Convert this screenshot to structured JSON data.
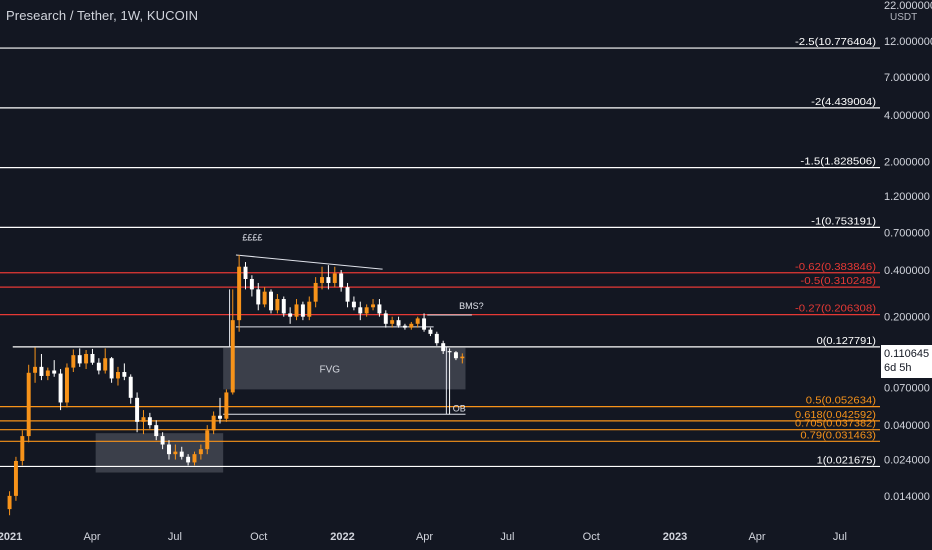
{
  "header": {
    "title": "Presearch / Tether, 1W, KUCOIN",
    "currency": "USDT"
  },
  "price_tag": {
    "value": "0.110645",
    "countdown": "6d 5h"
  },
  "colors": {
    "background": "#131722",
    "bull": "#f7931a",
    "bear": "#ffffff",
    "fib_white": "#ffffff",
    "fib_red": "#e53935",
    "fib_orange": "#f7931a",
    "zone": "#5d606b",
    "axis_text": "#d1d4dc"
  },
  "chart_data": {
    "type": "candlestick",
    "title": "Presearch / Tether, 1W, KUCOIN",
    "y_scale": "log",
    "y_unit": "USDT",
    "y_range": [
      0.0095,
      22
    ],
    "y_top_label": "22.000000",
    "y_ticks": [
      {
        "value": 12.0,
        "label": "12.000000"
      },
      {
        "value": 7.0,
        "label": "7.000000"
      },
      {
        "value": 4.0,
        "label": "4.000000"
      },
      {
        "value": 2.0,
        "label": "2.000000"
      },
      {
        "value": 1.2,
        "label": "1.200000"
      },
      {
        "value": 0.7,
        "label": "0.700000"
      },
      {
        "value": 0.4,
        "label": "0.400000"
      },
      {
        "value": 0.2,
        "label": "0.200000"
      },
      {
        "value": 0.07,
        "label": "0.070000"
      },
      {
        "value": 0.04,
        "label": "0.040000"
      },
      {
        "value": 0.024,
        "label": "0.024000"
      },
      {
        "value": 0.014,
        "label": "0.014000"
      }
    ],
    "x_range": [
      "2020-12-21",
      "2023-08-14"
    ],
    "x_ticks": [
      {
        "date": "2021-01-01",
        "label": "2021",
        "bold": true
      },
      {
        "date": "2021-04-01",
        "label": "Apr",
        "bold": false
      },
      {
        "date": "2021-07-01",
        "label": "Jul",
        "bold": false
      },
      {
        "date": "2021-10-01",
        "label": "Oct",
        "bold": false
      },
      {
        "date": "2022-01-01",
        "label": "2022",
        "bold": true
      },
      {
        "date": "2022-04-01",
        "label": "Apr",
        "bold": false
      },
      {
        "date": "2022-07-01",
        "label": "Jul",
        "bold": false
      },
      {
        "date": "2022-10-01",
        "label": "Oct",
        "bold": false
      },
      {
        "date": "2023-01-01",
        "label": "2023",
        "bold": true
      },
      {
        "date": "2023-04-01",
        "label": "Apr",
        "bold": false
      },
      {
        "date": "2023-07-01",
        "label": "Jul",
        "bold": false
      }
    ],
    "fib_levels": [
      {
        "label": "-2.5(10.776404)",
        "value": 10.776404,
        "color": "white",
        "start": "2020-12-21"
      },
      {
        "label": "-2(4.439004)",
        "value": 4.439004,
        "color": "white",
        "start": "2020-12-21"
      },
      {
        "label": "-1.5(1.828506)",
        "value": 1.828506,
        "color": "white",
        "start": "2020-12-21"
      },
      {
        "label": "-1(0.753191)",
        "value": 0.753191,
        "color": "white",
        "start": "2020-12-21"
      },
      {
        "label": "-0.62(0.383846)",
        "value": 0.383846,
        "color": "red",
        "start": "2020-12-21"
      },
      {
        "label": "-0.5(0.310248)",
        "value": 0.310248,
        "color": "red",
        "start": "2020-12-21"
      },
      {
        "label": "-0.27(0.206308)",
        "value": 0.206308,
        "color": "red",
        "start": "2020-12-21"
      },
      {
        "label": "0(0.127791)",
        "value": 0.127791,
        "color": "white",
        "start": "2021-01-04"
      },
      {
        "label": "0.5(0.052634)",
        "value": 0.052634,
        "color": "orange",
        "start": "2020-12-21"
      },
      {
        "label": "0.618(0.042592)",
        "value": 0.042592,
        "color": "orange",
        "start": "2020-12-21"
      },
      {
        "label": "0.705(0.037382)",
        "value": 0.037382,
        "color": "orange",
        "start": "2020-12-21"
      },
      {
        "label": "0.79(0.031463)",
        "value": 0.031463,
        "color": "orange",
        "start": "2020-12-21"
      },
      {
        "label": "1(0.021675)",
        "value": 0.021675,
        "color": "white",
        "start": "2020-12-21"
      }
    ],
    "zones": [
      {
        "label": "FVG",
        "start": "2021-08-23",
        "end": "2022-05-16",
        "high": 0.126,
        "low": 0.068
      },
      {
        "label": "",
        "start": "2021-04-05",
        "end": "2021-08-23",
        "high": 0.0355,
        "low": 0.0198
      }
    ],
    "annotations": [
      {
        "text": "££££",
        "date": "2021-09-13",
        "value": 0.62
      },
      {
        "text": "BMS?",
        "date": "2022-05-09",
        "value": 0.225
      },
      {
        "text": "OB",
        "date": "2022-05-02",
        "value": 0.049
      }
    ],
    "drawn_lines": [
      {
        "from": {
          "date": "2021-09-06",
          "value": 0.5
        },
        "to": {
          "date": "2022-02-14",
          "value": 0.405
        }
      },
      {
        "from": {
          "date": "2021-09-06",
          "value": 0.172
        },
        "to": {
          "date": "2022-04-11",
          "value": 0.172
        }
      },
      {
        "from": {
          "date": "2022-04-04",
          "value": 0.205
        },
        "to": {
          "date": "2022-05-23",
          "value": 0.205
        }
      },
      {
        "from": {
          "date": "2021-08-23",
          "value": 0.047
        },
        "to": {
          "date": "2022-05-16",
          "value": 0.047
        }
      },
      {
        "from": {
          "date": "2021-08-30",
          "value": 0.127
        },
        "to": {
          "date": "2021-08-30",
          "value": 0.3
        }
      },
      {
        "from": {
          "date": "2022-04-25",
          "value": 0.127
        },
        "to": {
          "date": "2022-04-25",
          "value": 0.047
        }
      }
    ],
    "candles": [
      {
        "date": "2020-12-28",
        "open": 0.0115,
        "high": 0.015,
        "low": 0.0105,
        "close": 0.014
      },
      {
        "date": "2021-01-04",
        "open": 0.014,
        "high": 0.025,
        "low": 0.013,
        "close": 0.0235
      },
      {
        "date": "2021-01-11",
        "open": 0.0235,
        "high": 0.037,
        "low": 0.022,
        "close": 0.034
      },
      {
        "date": "2021-01-18",
        "open": 0.034,
        "high": 0.098,
        "low": 0.031,
        "close": 0.087
      },
      {
        "date": "2021-01-25",
        "open": 0.087,
        "high": 0.127,
        "low": 0.075,
        "close": 0.095
      },
      {
        "date": "2021-02-01",
        "open": 0.095,
        "high": 0.115,
        "low": 0.078,
        "close": 0.083
      },
      {
        "date": "2021-02-08",
        "open": 0.083,
        "high": 0.094,
        "low": 0.078,
        "close": 0.09
      },
      {
        "date": "2021-02-15",
        "open": 0.09,
        "high": 0.105,
        "low": 0.082,
        "close": 0.086
      },
      {
        "date": "2021-02-22",
        "open": 0.086,
        "high": 0.092,
        "low": 0.05,
        "close": 0.056
      },
      {
        "date": "2021-03-01",
        "open": 0.056,
        "high": 0.1,
        "low": 0.052,
        "close": 0.094
      },
      {
        "date": "2021-03-08",
        "open": 0.094,
        "high": 0.123,
        "low": 0.088,
        "close": 0.113
      },
      {
        "date": "2021-03-15",
        "open": 0.113,
        "high": 0.125,
        "low": 0.095,
        "close": 0.1
      },
      {
        "date": "2021-03-22",
        "open": 0.1,
        "high": 0.122,
        "low": 0.092,
        "close": 0.115
      },
      {
        "date": "2021-03-29",
        "open": 0.115,
        "high": 0.124,
        "low": 0.098,
        "close": 0.101
      },
      {
        "date": "2021-04-05",
        "open": 0.101,
        "high": 0.108,
        "low": 0.085,
        "close": 0.09
      },
      {
        "date": "2021-04-12",
        "open": 0.09,
        "high": 0.125,
        "low": 0.086,
        "close": 0.108
      },
      {
        "date": "2021-04-19",
        "open": 0.108,
        "high": 0.11,
        "low": 0.075,
        "close": 0.08
      },
      {
        "date": "2021-04-26",
        "open": 0.08,
        "high": 0.095,
        "low": 0.072,
        "close": 0.088
      },
      {
        "date": "2021-05-03",
        "open": 0.088,
        "high": 0.1,
        "low": 0.078,
        "close": 0.082
      },
      {
        "date": "2021-05-10",
        "open": 0.082,
        "high": 0.085,
        "low": 0.055,
        "close": 0.06
      },
      {
        "date": "2021-05-17",
        "open": 0.06,
        "high": 0.065,
        "low": 0.036,
        "close": 0.042
      },
      {
        "date": "2021-05-24",
        "open": 0.042,
        "high": 0.05,
        "low": 0.035,
        "close": 0.045
      },
      {
        "date": "2021-05-31",
        "open": 0.045,
        "high": 0.048,
        "low": 0.038,
        "close": 0.04
      },
      {
        "date": "2021-06-07",
        "open": 0.04,
        "high": 0.043,
        "low": 0.032,
        "close": 0.034
      },
      {
        "date": "2021-06-14",
        "open": 0.034,
        "high": 0.036,
        "low": 0.028,
        "close": 0.03
      },
      {
        "date": "2021-06-21",
        "open": 0.03,
        "high": 0.032,
        "low": 0.024,
        "close": 0.026
      },
      {
        "date": "2021-06-28",
        "open": 0.026,
        "high": 0.03,
        "low": 0.024,
        "close": 0.027
      },
      {
        "date": "2021-07-05",
        "open": 0.027,
        "high": 0.029,
        "low": 0.024,
        "close": 0.025
      },
      {
        "date": "2021-07-12",
        "open": 0.025,
        "high": 0.026,
        "low": 0.022,
        "close": 0.023
      },
      {
        "date": "2021-07-19",
        "open": 0.023,
        "high": 0.027,
        "low": 0.022,
        "close": 0.026
      },
      {
        "date": "2021-07-26",
        "open": 0.026,
        "high": 0.03,
        "low": 0.024,
        "close": 0.028
      },
      {
        "date": "2021-08-02",
        "open": 0.028,
        "high": 0.04,
        "low": 0.026,
        "close": 0.037
      },
      {
        "date": "2021-08-09",
        "open": 0.037,
        "high": 0.049,
        "low": 0.035,
        "close": 0.046
      },
      {
        "date": "2021-08-16",
        "open": 0.046,
        "high": 0.06,
        "low": 0.041,
        "close": 0.044
      },
      {
        "date": "2021-08-23",
        "open": 0.044,
        "high": 0.068,
        "low": 0.042,
        "close": 0.065
      },
      {
        "date": "2021-08-30",
        "open": 0.065,
        "high": 0.3,
        "low": 0.063,
        "close": 0.19
      },
      {
        "date": "2021-09-06",
        "open": 0.19,
        "high": 0.5,
        "low": 0.16,
        "close": 0.42
      },
      {
        "date": "2021-09-13",
        "open": 0.42,
        "high": 0.45,
        "low": 0.3,
        "close": 0.35
      },
      {
        "date": "2021-09-20",
        "open": 0.35,
        "high": 0.37,
        "low": 0.27,
        "close": 0.3
      },
      {
        "date": "2021-09-27",
        "open": 0.3,
        "high": 0.33,
        "low": 0.22,
        "close": 0.24
      },
      {
        "date": "2021-10-04",
        "open": 0.24,
        "high": 0.31,
        "low": 0.23,
        "close": 0.29
      },
      {
        "date": "2021-10-11",
        "open": 0.29,
        "high": 0.3,
        "low": 0.21,
        "close": 0.22
      },
      {
        "date": "2021-10-18",
        "open": 0.22,
        "high": 0.28,
        "low": 0.21,
        "close": 0.26
      },
      {
        "date": "2021-10-25",
        "open": 0.26,
        "high": 0.27,
        "low": 0.2,
        "close": 0.21
      },
      {
        "date": "2021-11-01",
        "open": 0.21,
        "high": 0.23,
        "low": 0.18,
        "close": 0.2
      },
      {
        "date": "2021-11-08",
        "open": 0.2,
        "high": 0.26,
        "low": 0.19,
        "close": 0.24
      },
      {
        "date": "2021-11-15",
        "open": 0.24,
        "high": 0.25,
        "low": 0.19,
        "close": 0.2
      },
      {
        "date": "2021-11-22",
        "open": 0.2,
        "high": 0.27,
        "low": 0.19,
        "close": 0.25
      },
      {
        "date": "2021-11-29",
        "open": 0.25,
        "high": 0.36,
        "low": 0.23,
        "close": 0.33
      },
      {
        "date": "2021-12-06",
        "open": 0.33,
        "high": 0.42,
        "low": 0.3,
        "close": 0.36
      },
      {
        "date": "2021-12-13",
        "open": 0.36,
        "high": 0.43,
        "low": 0.3,
        "close": 0.33
      },
      {
        "date": "2021-12-20",
        "open": 0.33,
        "high": 0.42,
        "low": 0.31,
        "close": 0.38
      },
      {
        "date": "2021-12-27",
        "open": 0.38,
        "high": 0.4,
        "low": 0.29,
        "close": 0.31
      },
      {
        "date": "2022-01-03",
        "open": 0.31,
        "high": 0.33,
        "low": 0.23,
        "close": 0.25
      },
      {
        "date": "2022-01-10",
        "open": 0.25,
        "high": 0.27,
        "low": 0.22,
        "close": 0.23
      },
      {
        "date": "2022-01-17",
        "open": 0.23,
        "high": 0.25,
        "low": 0.19,
        "close": 0.21
      },
      {
        "date": "2022-01-24",
        "open": 0.21,
        "high": 0.24,
        "low": 0.2,
        "close": 0.23
      },
      {
        "date": "2022-01-31",
        "open": 0.23,
        "high": 0.26,
        "low": 0.22,
        "close": 0.24
      },
      {
        "date": "2022-02-07",
        "open": 0.24,
        "high": 0.26,
        "low": 0.2,
        "close": 0.21
      },
      {
        "date": "2022-02-14",
        "open": 0.21,
        "high": 0.22,
        "low": 0.17,
        "close": 0.18
      },
      {
        "date": "2022-02-21",
        "open": 0.18,
        "high": 0.2,
        "low": 0.17,
        "close": 0.19
      },
      {
        "date": "2022-02-28",
        "open": 0.19,
        "high": 0.2,
        "low": 0.17,
        "close": 0.175
      },
      {
        "date": "2022-03-07",
        "open": 0.175,
        "high": 0.18,
        "low": 0.165,
        "close": 0.17
      },
      {
        "date": "2022-03-14",
        "open": 0.17,
        "high": 0.185,
        "low": 0.165,
        "close": 0.18
      },
      {
        "date": "2022-03-21",
        "open": 0.18,
        "high": 0.2,
        "low": 0.17,
        "close": 0.195
      },
      {
        "date": "2022-03-28",
        "open": 0.195,
        "high": 0.21,
        "low": 0.16,
        "close": 0.165
      },
      {
        "date": "2022-04-04",
        "open": 0.165,
        "high": 0.17,
        "low": 0.15,
        "close": 0.155
      },
      {
        "date": "2022-04-11",
        "open": 0.155,
        "high": 0.16,
        "low": 0.13,
        "close": 0.135
      },
      {
        "date": "2022-04-18",
        "open": 0.135,
        "high": 0.14,
        "low": 0.115,
        "close": 0.12
      },
      {
        "date": "2022-04-25",
        "open": 0.12,
        "high": 0.125,
        "low": 0.047,
        "close": 0.118
      },
      {
        "date": "2022-05-02",
        "open": 0.118,
        "high": 0.12,
        "low": 0.105,
        "close": 0.108
      },
      {
        "date": "2022-05-09",
        "open": 0.108,
        "high": 0.116,
        "low": 0.1,
        "close": 0.1106
      }
    ]
  }
}
